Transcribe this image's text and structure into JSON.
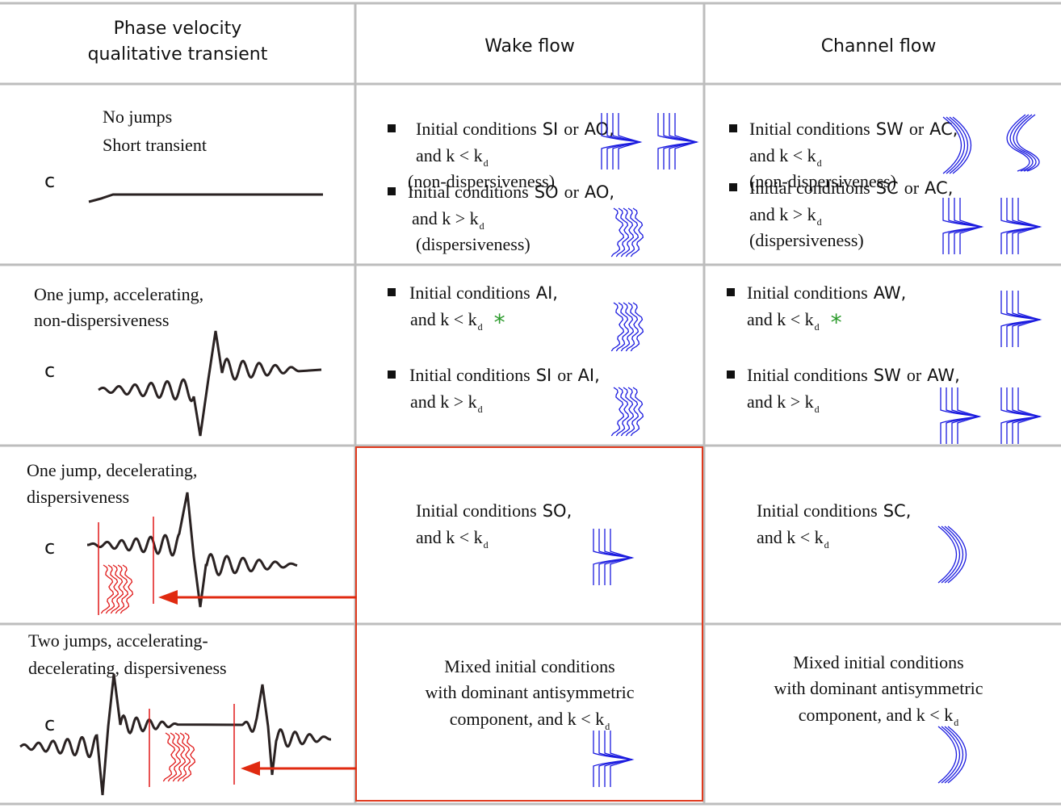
{
  "header": {
    "transient": [
      "Phase velocity",
      "qualitative transient"
    ],
    "wake": "Wake flow",
    "channel": "Channel flow"
  },
  "rows": [
    {
      "transient": [
        "No jumps",
        "Short transient"
      ],
      "axis": "c",
      "wake": [
        {
          "lead": "Initial conditions",
          "a": "SI",
          "or": "or",
          "b": "AO,",
          "cond": "and k < k",
          "sub": "d",
          "note": "(non-dispersiveness)"
        },
        {
          "lead": "Initial conditions",
          "a": "SO",
          "or": "or",
          "b": "AO,",
          "cond": "and k > k",
          "sub": "d",
          "note": "(dispersiveness)"
        }
      ],
      "channel": [
        {
          "lead": "Initial conditions",
          "a": "SW",
          "or": "or",
          "b": "AC,",
          "cond": "and k < k",
          "sub": "d",
          "note": "(non-dispersiveness)"
        },
        {
          "lead": "Initial conditions",
          "a": "SC",
          "or": "or",
          "b": "AC,",
          "cond": "and k > k",
          "sub": "d",
          "note": "(dispersiveness)"
        }
      ]
    },
    {
      "transient": [
        "One jump, accelerating,",
        "non-dispersiveness"
      ],
      "axis": "c",
      "wake": [
        {
          "lead": "Initial conditions",
          "a": "AI,",
          "cond": "and k < k",
          "sub": "d",
          "star": "*"
        },
        {
          "lead": "Initial conditions",
          "a": "SI",
          "or": "or",
          "b": "AI,",
          "cond": "and k > k",
          "sub": "d"
        }
      ],
      "channel": [
        {
          "lead": "Initial conditions",
          "a": "AW,",
          "cond": "and k < k",
          "sub": "d",
          "star": "*"
        },
        {
          "lead": "Initial conditions",
          "a": "SW",
          "or": "or",
          "b": "AW,",
          "cond": "and k > k",
          "sub": "d"
        }
      ]
    },
    {
      "transient": [
        "One jump, decelerating,",
        "dispersiveness"
      ],
      "axis": "c",
      "wake": [
        {
          "lead": "Initial conditions",
          "a": "SO,",
          "cond": "and k < k",
          "sub": "d"
        }
      ],
      "channel": [
        {
          "lead": "Initial conditions",
          "a": "SC,",
          "cond": "and k < k",
          "sub": "d"
        }
      ]
    },
    {
      "transient": [
        "Two jumps, accelerating-",
        "decelerating, dispersiveness"
      ],
      "axis": "c",
      "wake": [
        {
          "lines": [
            "Mixed initial conditions",
            "with dominant antisymmetric",
            "component, and k < k"
          ],
          "sub": "d"
        }
      ],
      "channel": [
        {
          "lines": [
            "Mixed initial conditions",
            "with dominant antisymmetric",
            "component, and k < k"
          ],
          "sub": "d"
        }
      ]
    }
  ]
}
